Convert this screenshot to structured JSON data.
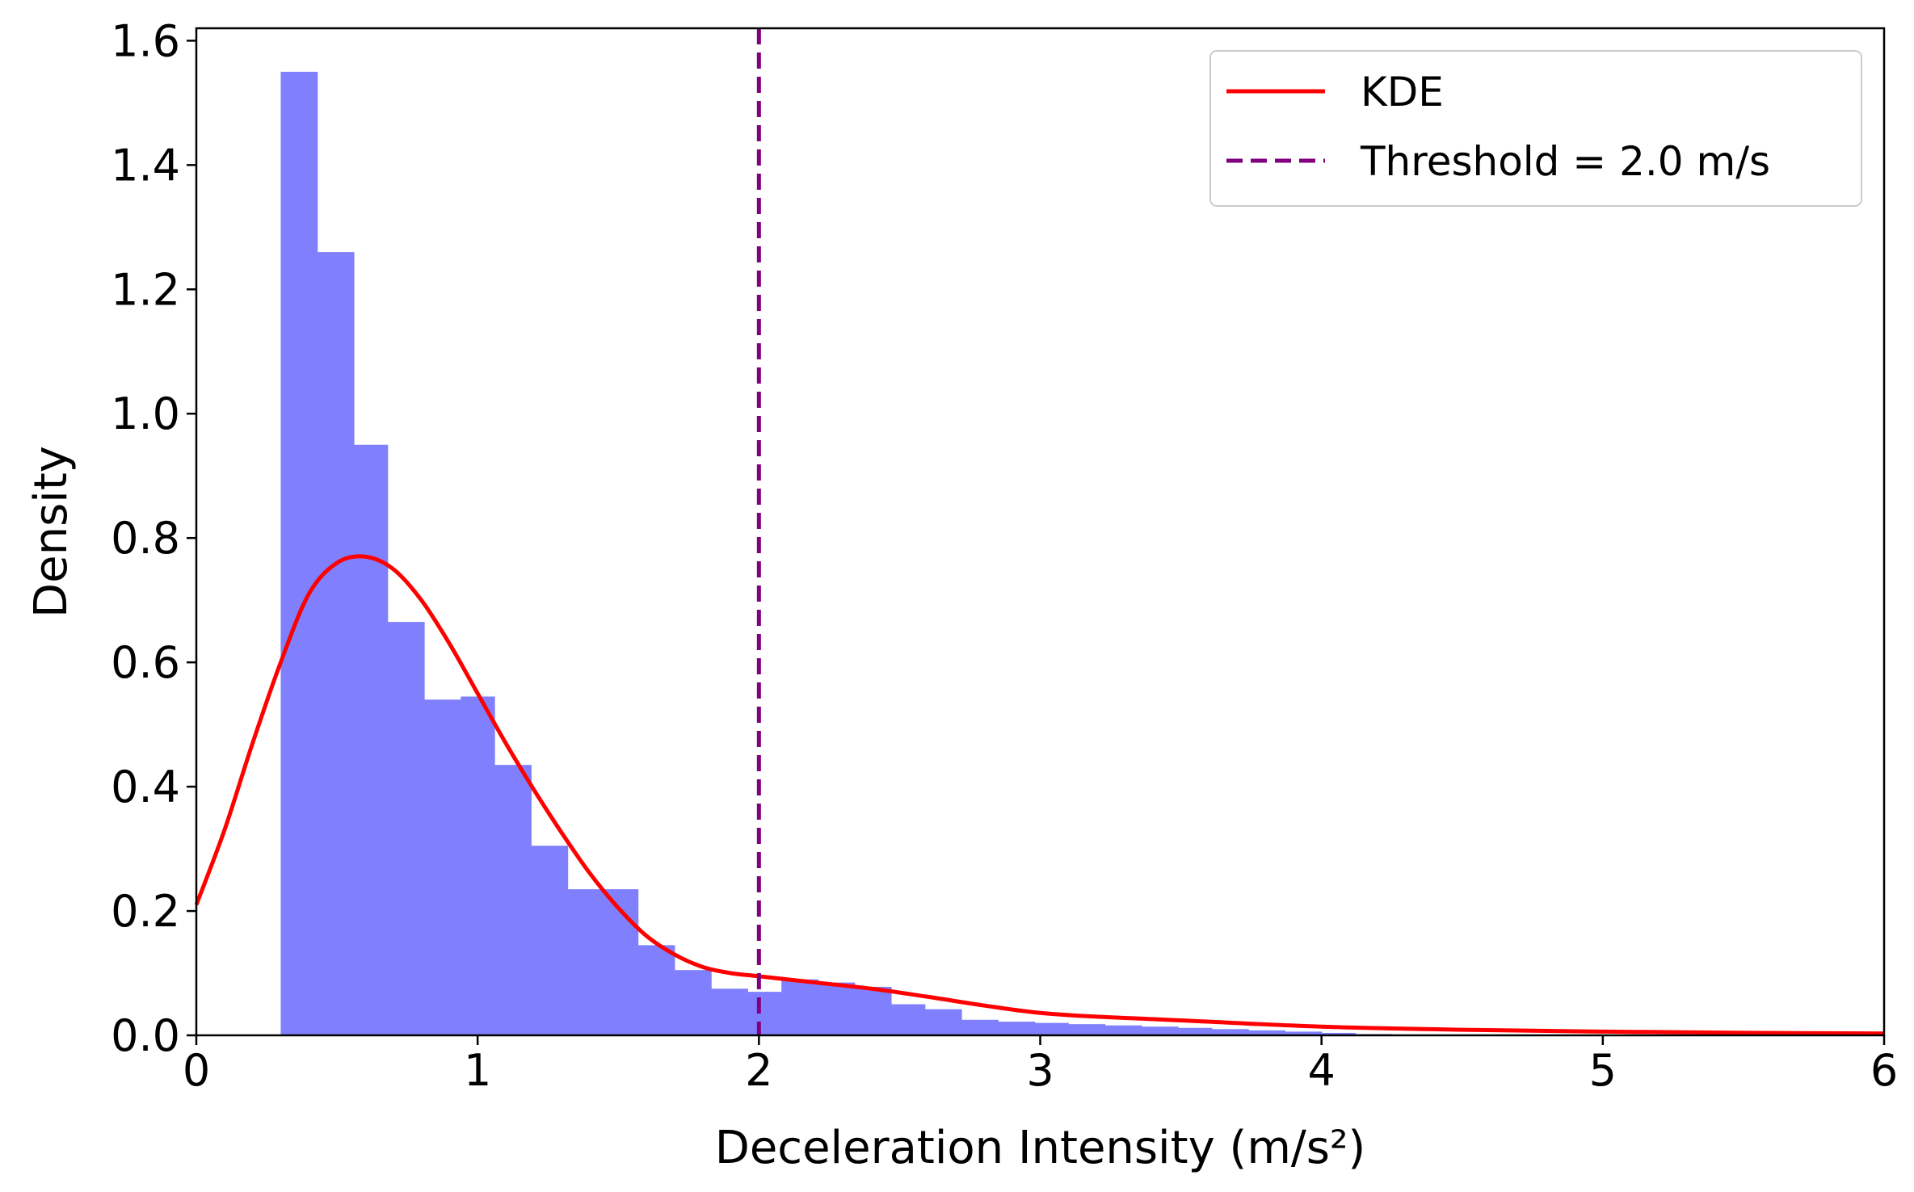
{
  "chart_data": {
    "type": "bar",
    "title": "",
    "xlabel": "Deceleration Intensity (m/s²)",
    "ylabel": "Density",
    "xlim": [
      0,
      6
    ],
    "ylim": [
      0,
      1.62
    ],
    "xticks": [
      "0",
      "1",
      "2",
      "3",
      "4",
      "5",
      "6"
    ],
    "xtick_values": [
      0,
      1,
      2,
      3,
      4,
      5,
      6
    ],
    "yticks": [
      "0.0",
      "0.2",
      "0.4",
      "0.6",
      "0.8",
      "1.0",
      "1.2",
      "1.4",
      "1.6"
    ],
    "ytick_values": [
      0,
      0.2,
      0.4,
      0.6,
      0.8,
      1.0,
      1.2,
      1.4,
      1.6
    ],
    "grid": false,
    "legend_position": "top-right",
    "histogram": {
      "color": "#8080ff",
      "bin_edges": [
        0.3,
        0.43,
        0.56,
        0.68,
        0.81,
        0.94,
        1.06,
        1.19,
        1.32,
        1.45,
        1.57,
        1.7,
        1.83,
        1.96,
        2.08,
        2.21,
        2.34,
        2.47,
        2.59,
        2.72,
        2.85,
        2.98,
        3.1,
        3.23,
        3.36,
        3.49,
        3.61,
        3.74,
        3.87,
        4.0,
        4.12,
        4.25
      ],
      "densities": [
        1.55,
        1.26,
        0.95,
        0.665,
        0.54,
        0.545,
        0.435,
        0.305,
        0.235,
        0.235,
        0.145,
        0.105,
        0.075,
        0.07,
        0.09,
        0.085,
        0.078,
        0.05,
        0.042,
        0.025,
        0.022,
        0.02,
        0.018,
        0.016,
        0.014,
        0.012,
        0.01,
        0.008,
        0.006,
        0.004,
        0.002
      ]
    },
    "series": [
      {
        "name": "KDE",
        "kind": "line",
        "color": "#ff0000",
        "x": [
          0,
          0.1,
          0.2,
          0.3,
          0.4,
          0.5,
          0.6,
          0.7,
          0.8,
          0.9,
          1.0,
          1.1,
          1.2,
          1.3,
          1.4,
          1.5,
          1.6,
          1.7,
          1.8,
          1.9,
          2.0,
          2.2,
          2.4,
          2.6,
          2.8,
          3.0,
          3.2,
          3.5,
          4.0,
          4.5,
          5.0,
          5.5,
          6.0
        ],
        "y": [
          0.21,
          0.33,
          0.47,
          0.6,
          0.71,
          0.76,
          0.77,
          0.75,
          0.7,
          0.63,
          0.55,
          0.47,
          0.395,
          0.325,
          0.26,
          0.205,
          0.16,
          0.13,
          0.11,
          0.1,
          0.095,
          0.085,
          0.075,
          0.062,
          0.048,
          0.036,
          0.03,
          0.024,
          0.014,
          0.009,
          0.006,
          0.004,
          0.003
        ]
      },
      {
        "name": "Threshold = 2.0 m/s",
        "kind": "vline",
        "color": "#800080",
        "x_value": 2.0
      }
    ]
  }
}
